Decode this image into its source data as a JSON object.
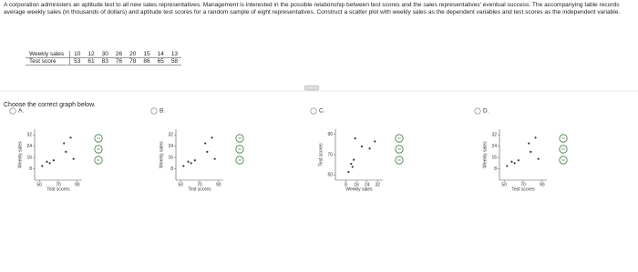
{
  "question": "A corporation administers an aptitude test to all new sales representatives. Management is interested in the possible relationship between test scores and the sales representatives' eventual success. The accompanying table records average weekly sales (in thousands of dollars) and aptitude test scores for a random sample of eight representatives. Construct a scatter plot with weekly sales as the dependent variables and test scores as the independent variable.",
  "table": {
    "rows": [
      [
        "Weekly sales",
        10,
        12,
        30,
        26,
        20,
        15,
        14,
        13
      ],
      [
        "Test score",
        53,
        61,
        83,
        76,
        78,
        86,
        65,
        58
      ]
    ]
  },
  "prompt": "Choose the correct graph below.",
  "options": [
    {
      "letter": "A.",
      "y_label": "Weekly sales",
      "x_label": "Test scores",
      "ylim": [
        0,
        36
      ],
      "yticks": [
        8,
        16,
        24,
        32
      ],
      "xlim": [
        45,
        95
      ],
      "xticks": [
        50,
        70,
        90
      ]
    },
    {
      "letter": "B.",
      "y_label": "Weekly sales",
      "x_label": "Test scores",
      "ylim": [
        0,
        36
      ],
      "yticks": [
        8,
        16,
        24,
        32
      ],
      "xlim": [
        45,
        95
      ],
      "xticks": [
        50,
        70,
        90
      ]
    },
    {
      "letter": "C.",
      "y_label": "Test scores",
      "x_label": "Weekly sales",
      "ylim": [
        45,
        95
      ],
      "yticks": [
        50,
        70,
        90
      ],
      "xlim": [
        0,
        36
      ],
      "xticks": [
        8,
        16,
        24,
        32
      ]
    },
    {
      "letter": "D.",
      "y_label": "Weekly sales",
      "x_label": "Test scores",
      "ylim": [
        0,
        36
      ],
      "yticks": [
        8,
        16,
        24,
        32
      ],
      "xlim": [
        45,
        95
      ],
      "xticks": [
        50,
        70,
        90
      ]
    }
  ]
}
